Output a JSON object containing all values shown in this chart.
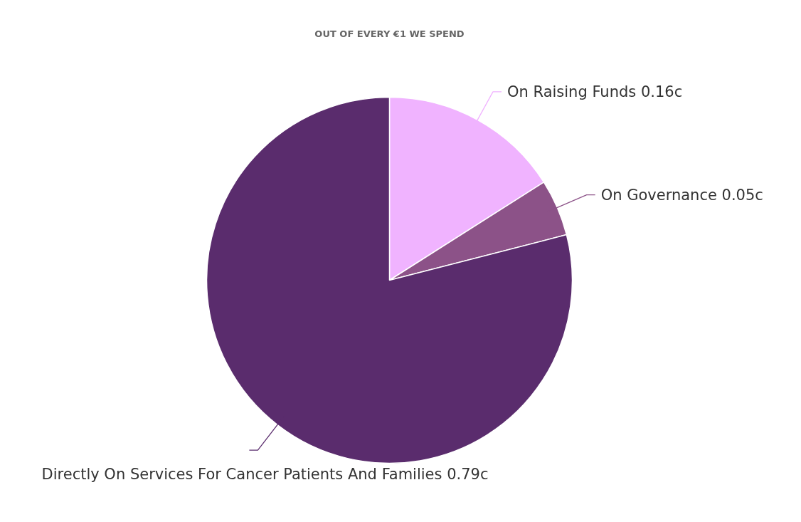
{
  "chart_data": {
    "type": "pie",
    "title": "OUT OF EVERY €1 WE SPEND",
    "categories": [
      "On Raising Funds",
      "On Governance",
      "Directly On Services For Cancer Patients And Families"
    ],
    "values": [
      0.16,
      0.05,
      0.79
    ],
    "value_labels": [
      "0.16c",
      "0.05c",
      "0.79c"
    ],
    "colors": [
      "#f0b3ff",
      "#8c5288",
      "#5a2c6d"
    ]
  }
}
